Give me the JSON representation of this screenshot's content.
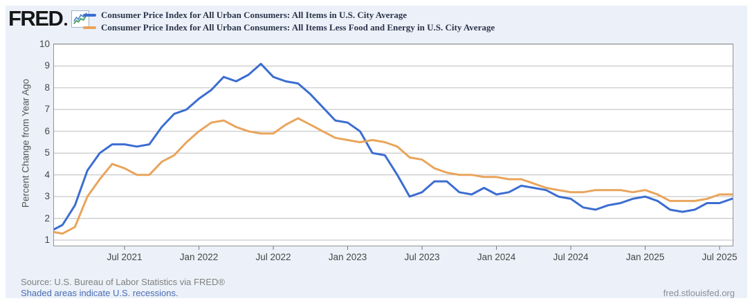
{
  "page": {
    "background": "#ffffff",
    "widget_background": "#ecf1f9"
  },
  "header": {
    "logo_text": "FRED",
    "logo_icon": "sparkline-chart-icon"
  },
  "chart_data": {
    "type": "line",
    "title": "",
    "xlabel": "",
    "ylabel": "Percent Change from Year Ago",
    "ylim": [
      0.7,
      10.05
    ],
    "grid": true,
    "legend_position": "top-left",
    "frequency": "monthly",
    "x_months": [
      "2021-01",
      "2021-02",
      "2021-03",
      "2021-04",
      "2021-05",
      "2021-06",
      "2021-07",
      "2021-08",
      "2021-09",
      "2021-10",
      "2021-11",
      "2021-12",
      "2022-01",
      "2022-02",
      "2022-03",
      "2022-04",
      "2022-05",
      "2022-06",
      "2022-07",
      "2022-08",
      "2022-09",
      "2022-10",
      "2022-11",
      "2022-12",
      "2023-01",
      "2023-02",
      "2023-03",
      "2023-04",
      "2023-05",
      "2023-06",
      "2023-07",
      "2023-08",
      "2023-09",
      "2023-10",
      "2023-11",
      "2023-12",
      "2024-01",
      "2024-02",
      "2024-03",
      "2024-04",
      "2024-05",
      "2024-06",
      "2024-07",
      "2024-08",
      "2024-09",
      "2024-10",
      "2024-11",
      "2024-12",
      "2025-01",
      "2025-02",
      "2025-03",
      "2025-04",
      "2025-05",
      "2025-06",
      "2025-07",
      "2025-08"
    ],
    "y_ticks": [
      1,
      2,
      3,
      4,
      5,
      6,
      7,
      8,
      9,
      10
    ],
    "x_ticks": [
      {
        "label": "Jul 2021",
        "month_index": 6
      },
      {
        "label": "Jan 2022",
        "month_index": 12
      },
      {
        "label": "Jul 2022",
        "month_index": 18
      },
      {
        "label": "Jan 2023",
        "month_index": 24
      },
      {
        "label": "Jul 2023",
        "month_index": 30
      },
      {
        "label": "Jan 2024",
        "month_index": 36
      },
      {
        "label": "Jul 2024",
        "month_index": 42
      },
      {
        "label": "Jan 2025",
        "month_index": 48
      },
      {
        "label": "Jul 2025",
        "month_index": 54
      }
    ],
    "series": [
      {
        "name": "Consumer Price Index for All Urban Consumers: All Items in U.S. City Average",
        "color": "#3b6dd1",
        "values": [
          1.4,
          1.7,
          2.6,
          4.2,
          5.0,
          5.4,
          5.4,
          5.3,
          5.4,
          6.2,
          6.8,
          7.0,
          7.5,
          7.9,
          8.5,
          8.3,
          8.6,
          9.1,
          8.5,
          8.3,
          8.2,
          7.7,
          7.1,
          6.5,
          6.4,
          6.0,
          5.0,
          4.9,
          4.0,
          3.0,
          3.2,
          3.7,
          3.7,
          3.2,
          3.1,
          3.4,
          3.1,
          3.2,
          3.5,
          3.4,
          3.3,
          3.0,
          2.9,
          2.5,
          2.4,
          2.6,
          2.7,
          2.9,
          3.0,
          2.8,
          2.4,
          2.3,
          2.4,
          2.7,
          2.7,
          2.9
        ]
      },
      {
        "name": "Consumer Price Index for All Urban Consumers: All Items Less Food and Energy in U.S. City Average",
        "color": "#e9a45b",
        "values": [
          1.4,
          1.3,
          1.6,
          3.0,
          3.8,
          4.5,
          4.3,
          4.0,
          4.0,
          4.6,
          4.9,
          5.5,
          6.0,
          6.4,
          6.5,
          6.2,
          6.0,
          5.9,
          5.9,
          6.3,
          6.6,
          6.3,
          6.0,
          5.7,
          5.6,
          5.5,
          5.6,
          5.5,
          5.3,
          4.8,
          4.7,
          4.3,
          4.1,
          4.0,
          4.0,
          3.9,
          3.9,
          3.8,
          3.8,
          3.6,
          3.4,
          3.3,
          3.2,
          3.2,
          3.3,
          3.3,
          3.3,
          3.2,
          3.3,
          3.1,
          2.8,
          2.8,
          2.8,
          2.9,
          3.1,
          3.1
        ]
      }
    ],
    "style": {
      "grid_color": "#bcbcbc",
      "border_color": "#919191",
      "tick_color": "#777777",
      "plot_background": "#ffffff"
    }
  },
  "footer": {
    "source": "Source: U.S. Bureau of Labor Statistics via FRED®",
    "recessions_note": "Shaded areas indicate U.S. recessions.",
    "site": "fred.stlouisfed.org"
  }
}
